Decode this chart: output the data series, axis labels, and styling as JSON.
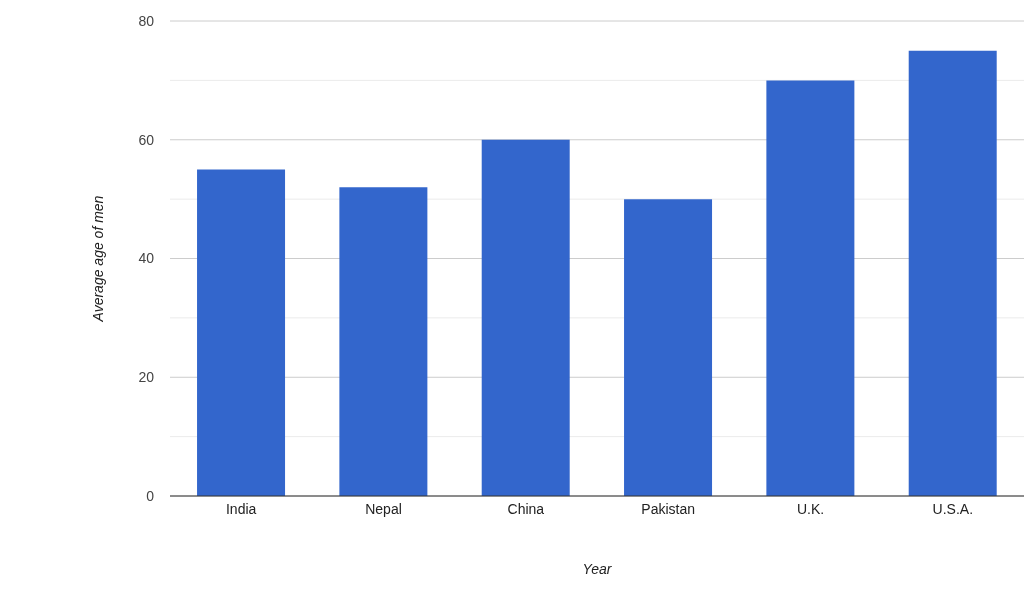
{
  "chart_data": {
    "type": "bar",
    "xlabel": "Year",
    "ylabel": "Average age of men",
    "categories": [
      "India",
      "Nepal",
      "China",
      "Pakistan",
      "U.K.",
      "U.S.A."
    ],
    "values": [
      55,
      52,
      60,
      50,
      70,
      75
    ],
    "color": "#3366cc",
    "ylim": [
      0,
      80
    ],
    "yticks": [
      0,
      {
        "value": 10,
        "label": null
      },
      20,
      {
        "value": 30,
        "label": null
      },
      40,
      {
        "value": 50,
        "label": null
      },
      60,
      {
        "value": 70,
        "label": null
      },
      80
    ],
    "grid": true,
    "legend": false
  }
}
